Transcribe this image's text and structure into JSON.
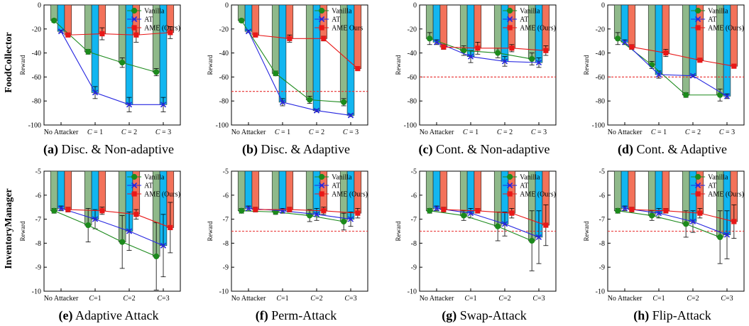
{
  "row_labels": [
    "FoodCollector",
    "InventoryManager"
  ],
  "colors": {
    "vanilla_bar": "#8fb98a",
    "at_bar": "#12b6f0",
    "ame_bar": "#f3725a",
    "vanilla_line": "#1c8a1c",
    "at_line": "#2626e0",
    "ame_line": "#e81818",
    "threshold": "#e83030"
  },
  "chart_data": [
    {
      "type": "bar",
      "caption_id": "(a)",
      "caption_text": "Disc. & Non-adaptive",
      "ylabel": "Reward",
      "ylim": [
        -100,
        0
      ],
      "yticks": [
        0,
        -20,
        -40,
        -60,
        -80,
        -100
      ],
      "categories": [
        "No Attacker",
        "C = 1",
        "C = 2",
        "C = 3"
      ],
      "cat_style": "math-spaced",
      "threshold": null,
      "legend": [
        "Vanilla",
        "AT",
        "AME (Ours)"
      ],
      "series": [
        {
          "name": "Vanilla",
          "values": [
            -13,
            -39,
            -48,
            -56
          ],
          "errors": [
            1.5,
            2,
            4,
            3
          ]
        },
        {
          "name": "AT",
          "values": [
            -22,
            -73,
            -83,
            -83
          ],
          "errors": [
            1,
            5,
            6,
            6
          ]
        },
        {
          "name": "AME (Ours)",
          "values": [
            -25,
            -24,
            -25,
            -23
          ],
          "errors": [
            1.5,
            5,
            6,
            5
          ]
        }
      ]
    },
    {
      "type": "bar",
      "caption_id": "(b)",
      "caption_text": "Disc. & Adaptive",
      "ylabel": "Reward",
      "ylim": [
        -100,
        0
      ],
      "yticks": [
        0,
        -20,
        -40,
        -60,
        -80,
        -100
      ],
      "categories": [
        "No Attacker",
        "C = 1",
        "C = 2",
        "C = 3"
      ],
      "cat_style": "math-spaced",
      "threshold": -72,
      "legend": [
        "Vanilla",
        "AT",
        "AME Ours"
      ],
      "series": [
        {
          "name": "Vanilla",
          "values": [
            -13,
            -57,
            -79,
            -81
          ],
          "errors": [
            1.5,
            2,
            3,
            3
          ]
        },
        {
          "name": "AT",
          "values": [
            -22,
            -81,
            -88,
            -92
          ],
          "errors": [
            1,
            3,
            1,
            1
          ]
        },
        {
          "name": "AME Ours",
          "values": [
            -25,
            -28,
            -28,
            -53
          ],
          "errors": [
            1.5,
            3,
            2,
            1
          ]
        }
      ]
    },
    {
      "type": "bar",
      "caption_id": "(c)",
      "caption_text": "Cont. & Non-adaptive",
      "ylabel": "Reward",
      "ylim": [
        -100,
        0
      ],
      "yticks": [
        0,
        -20,
        -40,
        -60,
        -80,
        -100
      ],
      "categories": [
        "No Attacker",
        "C = 1",
        "C = 2",
        "C = 3"
      ],
      "cat_style": "math-spaced",
      "threshold": -60,
      "legend": [
        "Vanilla",
        "AT",
        "AME (Ours)"
      ],
      "series": [
        {
          "name": "Vanilla",
          "values": [
            -28,
            -38,
            -40,
            -45
          ],
          "errors": [
            5,
            4,
            4,
            5
          ]
        },
        {
          "name": "AT",
          "values": [
            -31,
            -43,
            -47,
            -48
          ],
          "errors": [
            2,
            5,
            4,
            4
          ]
        },
        {
          "name": "AME (Ours)",
          "values": [
            -35,
            -36,
            -36,
            -38
          ],
          "errors": [
            2,
            5,
            3,
            4
          ]
        }
      ]
    },
    {
      "type": "bar",
      "caption_id": "(d)",
      "caption_text": "Cont. & Adaptive",
      "ylabel": "Reward",
      "ylim": [
        -100,
        0
      ],
      "yticks": [
        0,
        -20,
        -40,
        -60,
        -80,
        -100
      ],
      "categories": [
        "No Attacker",
        "C = 1",
        "C = 2",
        "C = 3"
      ],
      "cat_style": "math-spaced",
      "threshold": -60,
      "legend": [
        "Vanilla",
        "AT",
        "AME (Ours)"
      ],
      "series": [
        {
          "name": "Vanilla",
          "values": [
            -28,
            -50,
            -75,
            -75
          ],
          "errors": [
            5,
            3,
            2,
            5
          ]
        },
        {
          "name": "AT",
          "values": [
            -31,
            -58,
            -59,
            -76
          ],
          "errors": [
            2,
            3,
            1,
            2
          ]
        },
        {
          "name": "AME (Ours)",
          "values": [
            -35,
            -40,
            -46,
            -51
          ],
          "errors": [
            2,
            3,
            1,
            1
          ]
        }
      ]
    },
    {
      "type": "bar",
      "caption_id": "(e)",
      "caption_text": "Adaptive Attack",
      "ylabel": "Reward",
      "ylim": [
        -10,
        -5
      ],
      "yticks": [
        -5,
        -6,
        -7,
        -8,
        -9,
        -10
      ],
      "categories": [
        "No Attacker",
        "C=1",
        "C=2",
        "C=3"
      ],
      "cat_style": "math-tight",
      "threshold": null,
      "legend": [
        "Vanilla",
        "AT",
        "AME (Ours)"
      ],
      "series": [
        {
          "name": "Vanilla",
          "values": [
            -6.65,
            -7.25,
            -7.95,
            -8.55
          ],
          "errors": [
            0.1,
            0.7,
            1.1,
            1.4
          ]
        },
        {
          "name": "AT",
          "values": [
            -6.55,
            -7.0,
            -7.5,
            -8.1
          ],
          "errors": [
            0.1,
            0.4,
            0.8,
            1.3
          ]
        },
        {
          "name": "AME (Ours)",
          "values": [
            -6.6,
            -6.65,
            -6.8,
            -7.35
          ],
          "errors": [
            0.1,
            0.15,
            0.2,
            1.05
          ]
        }
      ]
    },
    {
      "type": "bar",
      "caption_id": "(f)",
      "caption_text": "Perm-Attack",
      "ylabel": "Reward",
      "ylim": [
        -10,
        -5
      ],
      "yticks": [
        -5,
        -6,
        -7,
        -8,
        -9,
        -10
      ],
      "categories": [
        "No Attacker",
        "C=1",
        "C=2",
        "C=3"
      ],
      "cat_style": "math-tight",
      "threshold": -7.5,
      "legend": [
        "Vanilla",
        "AT",
        "AME (Ours)"
      ],
      "series": [
        {
          "name": "Vanilla",
          "values": [
            -6.65,
            -6.7,
            -6.85,
            -7.1
          ],
          "errors": [
            0.1,
            0.1,
            0.25,
            0.35
          ]
        },
        {
          "name": "AT",
          "values": [
            -6.55,
            -6.65,
            -6.8,
            -7.0
          ],
          "errors": [
            0.1,
            0.1,
            0.25,
            0.3
          ]
        },
        {
          "name": "AME (Ours)",
          "values": [
            -6.6,
            -6.6,
            -6.65,
            -6.75
          ],
          "errors": [
            0.1,
            0.1,
            0.15,
            0.2
          ]
        }
      ]
    },
    {
      "type": "bar",
      "caption_id": "(g)",
      "caption_text": "Swap-Attack",
      "ylabel": "Reward",
      "ylim": [
        -10,
        -5
      ],
      "yticks": [
        -5,
        -6,
        -7,
        -8,
        -9,
        -10
      ],
      "categories": [
        "No Attacker",
        "C=1",
        "C=2",
        "C=3"
      ],
      "cat_style": "math-tight",
      "threshold": -7.5,
      "legend": [
        "Vanilla",
        "AT",
        "AME (Ours)"
      ],
      "series": [
        {
          "name": "Vanilla",
          "values": [
            -6.65,
            -6.85,
            -7.3,
            -7.9
          ],
          "errors": [
            0.1,
            0.2,
            0.6,
            1.25
          ]
        },
        {
          "name": "AT",
          "values": [
            -6.55,
            -6.75,
            -7.2,
            -7.75
          ],
          "errors": [
            0.1,
            0.2,
            0.5,
            1.1
          ]
        },
        {
          "name": "AME (Ours)",
          "values": [
            -6.6,
            -6.65,
            -6.75,
            -7.25
          ],
          "errors": [
            0.1,
            0.1,
            0.2,
            0.85
          ]
        }
      ]
    },
    {
      "type": "bar",
      "caption_id": "(h)",
      "caption_text": "Flip-Attack",
      "ylabel": "Reward",
      "ylim": [
        -10,
        -5
      ],
      "yticks": [
        -5,
        -6,
        -7,
        -8,
        -9,
        -10
      ],
      "categories": [
        "No Attacker",
        "C=1",
        "C=2",
        "C=3"
      ],
      "cat_style": "math-tight",
      "threshold": -7.5,
      "legend": [
        "Vanilla",
        "AT",
        "AME (Ours)"
      ],
      "series": [
        {
          "name": "Vanilla",
          "values": [
            -6.65,
            -6.85,
            -7.2,
            -7.75
          ],
          "errors": [
            0.1,
            0.2,
            0.55,
            1.1
          ]
        },
        {
          "name": "AT",
          "values": [
            -6.55,
            -6.75,
            -7.1,
            -7.65
          ],
          "errors": [
            0.1,
            0.2,
            0.45,
            1.0
          ]
        },
        {
          "name": "AME (Ours)",
          "values": [
            -6.6,
            -6.65,
            -6.75,
            -7.1
          ],
          "errors": [
            0.1,
            0.1,
            0.2,
            0.7
          ]
        }
      ]
    }
  ]
}
